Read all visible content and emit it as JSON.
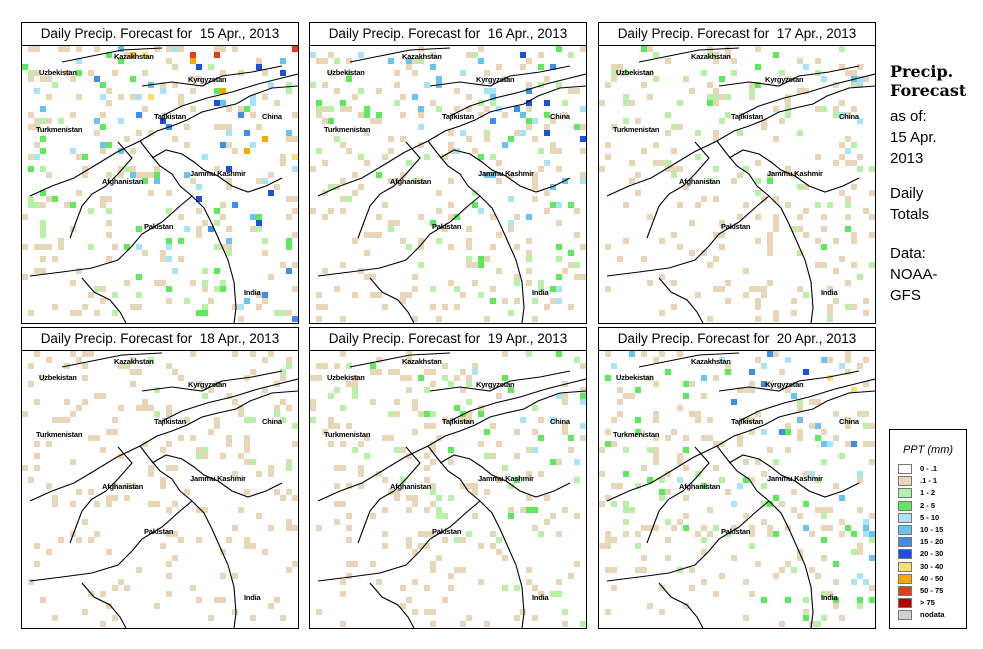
{
  "panels": [
    {
      "title": "Daily Precip. Forecast for  15 Apr., 2013",
      "intensity": 1.0
    },
    {
      "title": "Daily Precip. Forecast for  16 Apr., 2013",
      "intensity": 0.7
    },
    {
      "title": "Daily Precip. Forecast for  17 Apr., 2013",
      "intensity": 0.45
    },
    {
      "title": "Daily Precip. Forecast for  18 Apr., 2013",
      "intensity": 0.25
    },
    {
      "title": "Daily Precip. Forecast for  19 Apr., 2013",
      "intensity": 0.45
    },
    {
      "title": "Daily Precip. Forecast for  20 Apr., 2013",
      "intensity": 0.75
    }
  ],
  "map_labels": {
    "kazakhstan": "Kazakhstan",
    "uzbekistan": "Uzbekistan",
    "kyrgyzstan": "Kyrgyzstan",
    "tajikistan": "Tajikistan",
    "china": "China",
    "turkmenistan": "Turkmenistan",
    "afghanistan": "Afghanistan",
    "jammu_kashmir": "Jammu Kashmir",
    "pakistan": "Pakistan",
    "india": "India"
  },
  "side": {
    "title_line1": "Precip.",
    "title_line2": "Forecast",
    "asof_line1": "as of:",
    "asof_line2": "15 Apr.",
    "asof_line3": "2013",
    "totals_line1": "Daily",
    "totals_line2": "Totals",
    "data_line1": "Data:",
    "data_line2": "NOAA-",
    "data_line3": "GFS"
  },
  "legend": {
    "title": "PPT (mm)",
    "items": [
      {
        "label": "0 - .1",
        "color": "#ffffff"
      },
      {
        "label": ".1 - 1",
        "color": "#e8d6b8"
      },
      {
        "label": "1 - 2",
        "color": "#b8f0a8"
      },
      {
        "label": "2 - 5",
        "color": "#5ee85e"
      },
      {
        "label": "5 - 10",
        "color": "#a8e4f4"
      },
      {
        "label": "10 - 15",
        "color": "#6cc2ee"
      },
      {
        "label": "15 - 20",
        "color": "#3c8ee8"
      },
      {
        "label": "20 - 30",
        "color": "#1c50dc"
      },
      {
        "label": "30 - 40",
        "color": "#f8e070"
      },
      {
        "label": "40 - 50",
        "color": "#f8a800"
      },
      {
        "label": "50 - 75",
        "color": "#e83c1c"
      },
      {
        "label": "> 75",
        "color": "#b00000"
      },
      {
        "label": "nodata",
        "color": "#cfcfcf"
      }
    ]
  }
}
